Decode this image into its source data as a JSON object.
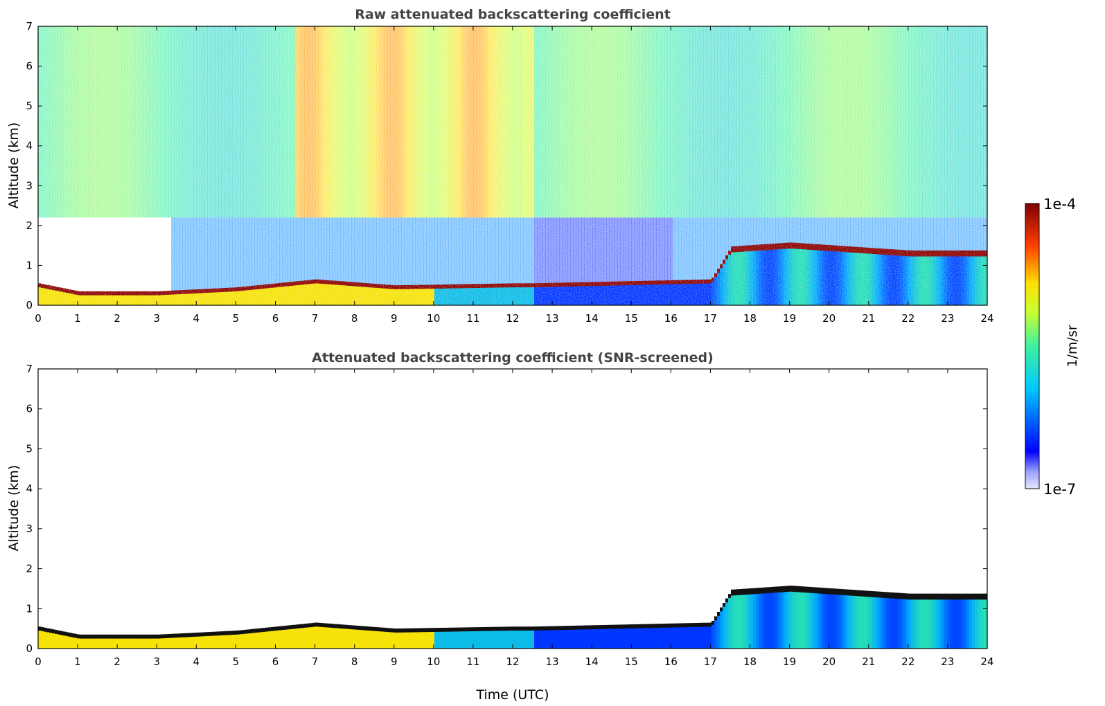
{
  "chart_data": [
    {
      "type": "heatmap",
      "title": "Raw attenuated backscattering coefficient",
      "xlabel": "",
      "ylabel": "Altitude (km)",
      "xlim": [
        0,
        24
      ],
      "ylim": [
        0,
        7
      ],
      "x_ticks": [
        "0",
        "1",
        "2",
        "3",
        "4",
        "5",
        "6",
        "7",
        "8",
        "9",
        "10",
        "11",
        "12",
        "13",
        "14",
        "15",
        "16",
        "17",
        "18",
        "19",
        "20",
        "21",
        "22",
        "23",
        "24"
      ],
      "y_ticks": [
        "0",
        "1",
        "2",
        "3",
        "4",
        "5",
        "6",
        "7"
      ],
      "grid": false,
      "description_values": {
        "boundary_layer_top_km": [
          [
            0,
            0.5
          ],
          [
            1,
            0.3
          ],
          [
            3,
            0.3
          ],
          [
            5,
            0.4
          ],
          [
            7,
            0.6
          ],
          [
            9,
            0.45
          ],
          [
            12,
            0.5
          ],
          [
            12.5,
            0.5
          ],
          [
            17,
            0.6
          ],
          [
            17.5,
            1.4
          ],
          [
            19,
            1.5
          ],
          [
            22,
            1.3
          ],
          [
            24,
            1.3
          ]
        ],
        "noise_peak_time_range_utc": [
          7,
          12.5
        ]
      }
    },
    {
      "type": "heatmap",
      "title": "Attenuated backscattering coefficient (SNR-screened)",
      "xlabel": "Time (UTC)",
      "ylabel": "Altitude (km)",
      "xlim": [
        0,
        24
      ],
      "ylim": [
        0,
        7
      ],
      "x_ticks": [
        "0",
        "1",
        "2",
        "3",
        "4",
        "5",
        "6",
        "7",
        "8",
        "9",
        "10",
        "11",
        "12",
        "13",
        "14",
        "15",
        "16",
        "17",
        "18",
        "19",
        "20",
        "21",
        "22",
        "23",
        "24"
      ],
      "y_ticks": [
        "0",
        "1",
        "2",
        "3",
        "4",
        "5",
        "6",
        "7"
      ],
      "grid": false
    }
  ],
  "colorbar": {
    "label": "1/m/sr",
    "max_label": "1e-4",
    "min_label": "1e-7",
    "scale": "log",
    "colormap": "jet"
  }
}
